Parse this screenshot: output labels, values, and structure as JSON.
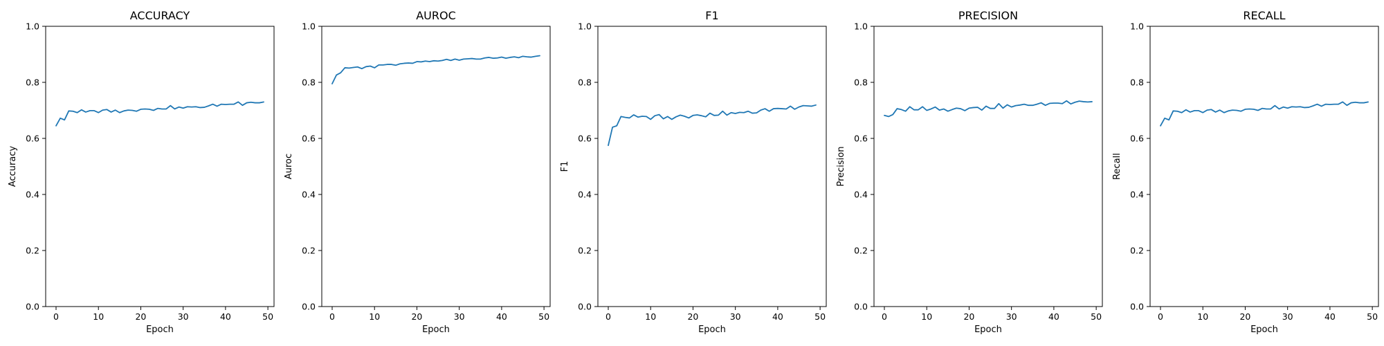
{
  "figure": {
    "background": "#ffffff"
  },
  "style": {
    "line_color": "#1f77b4",
    "axis_color": "#000000"
  },
  "chart_data": [
    {
      "type": "line",
      "title": "ACCURACY",
      "xlabel": "Epoch",
      "ylabel": "Accuracy",
      "xlim": [
        -2.45,
        51.45
      ],
      "ylim": [
        0,
        1
      ],
      "xticks": [
        0,
        10,
        20,
        30,
        40,
        50
      ],
      "yticks": [
        0.0,
        0.2,
        0.4,
        0.6,
        0.8,
        1.0
      ],
      "grid": false,
      "legend": "none",
      "x": [
        0,
        1,
        2,
        3,
        4,
        5,
        6,
        7,
        8,
        9,
        10,
        11,
        12,
        13,
        14,
        15,
        16,
        17,
        18,
        19,
        20,
        21,
        22,
        23,
        24,
        25,
        26,
        27,
        28,
        29,
        30,
        31,
        32,
        33,
        34,
        35,
        36,
        37,
        38,
        39,
        40,
        41,
        42,
        43,
        44,
        45,
        46,
        47,
        48,
        49
      ],
      "values": [
        0.645,
        0.672,
        0.666,
        0.698,
        0.697,
        0.692,
        0.702,
        0.694,
        0.699,
        0.699,
        0.692,
        0.701,
        0.703,
        0.694,
        0.701,
        0.692,
        0.698,
        0.701,
        0.7,
        0.697,
        0.704,
        0.705,
        0.704,
        0.7,
        0.707,
        0.705,
        0.705,
        0.717,
        0.705,
        0.712,
        0.708,
        0.713,
        0.712,
        0.713,
        0.71,
        0.711,
        0.716,
        0.722,
        0.715,
        0.722,
        0.721,
        0.722,
        0.722,
        0.73,
        0.718,
        0.727,
        0.729,
        0.727,
        0.727,
        0.73
      ]
    },
    {
      "type": "line",
      "title": "AUROC",
      "xlabel": "Epoch",
      "ylabel": "Auroc",
      "xlim": [
        -2.45,
        51.45
      ],
      "ylim": [
        0,
        1
      ],
      "xticks": [
        0,
        10,
        20,
        30,
        40,
        50
      ],
      "yticks": [
        0.0,
        0.2,
        0.4,
        0.6,
        0.8,
        1.0
      ],
      "grid": false,
      "legend": "none",
      "x": [
        0,
        1,
        2,
        3,
        4,
        5,
        6,
        7,
        8,
        9,
        10,
        11,
        12,
        13,
        14,
        15,
        16,
        17,
        18,
        19,
        20,
        21,
        22,
        23,
        24,
        25,
        26,
        27,
        28,
        29,
        30,
        31,
        32,
        33,
        34,
        35,
        36,
        37,
        38,
        39,
        40,
        41,
        42,
        43,
        44,
        45,
        46,
        47,
        48,
        49
      ],
      "values": [
        0.795,
        0.826,
        0.834,
        0.852,
        0.851,
        0.853,
        0.855,
        0.849,
        0.856,
        0.858,
        0.852,
        0.862,
        0.862,
        0.864,
        0.864,
        0.861,
        0.866,
        0.868,
        0.869,
        0.868,
        0.874,
        0.873,
        0.876,
        0.874,
        0.877,
        0.876,
        0.878,
        0.882,
        0.878,
        0.883,
        0.879,
        0.883,
        0.884,
        0.885,
        0.883,
        0.883,
        0.887,
        0.889,
        0.886,
        0.887,
        0.89,
        0.886,
        0.889,
        0.891,
        0.888,
        0.893,
        0.891,
        0.89,
        0.893,
        0.895
      ]
    },
    {
      "type": "line",
      "title": "F1",
      "xlabel": "Epoch",
      "ylabel": "F1",
      "xlim": [
        -2.45,
        51.45
      ],
      "ylim": [
        0,
        1
      ],
      "xticks": [
        0,
        10,
        20,
        30,
        40,
        50
      ],
      "yticks": [
        0.0,
        0.2,
        0.4,
        0.6,
        0.8,
        1.0
      ],
      "grid": false,
      "legend": "none",
      "x": [
        0,
        1,
        2,
        3,
        4,
        5,
        6,
        7,
        8,
        9,
        10,
        11,
        12,
        13,
        14,
        15,
        16,
        17,
        18,
        19,
        20,
        21,
        22,
        23,
        24,
        25,
        26,
        27,
        28,
        29,
        30,
        31,
        32,
        33,
        34,
        35,
        36,
        37,
        38,
        39,
        40,
        41,
        42,
        43,
        44,
        45,
        46,
        47,
        48,
        49
      ],
      "values": [
        0.575,
        0.64,
        0.645,
        0.678,
        0.675,
        0.673,
        0.684,
        0.676,
        0.679,
        0.678,
        0.668,
        0.681,
        0.685,
        0.67,
        0.678,
        0.668,
        0.677,
        0.683,
        0.679,
        0.673,
        0.682,
        0.684,
        0.681,
        0.677,
        0.69,
        0.682,
        0.683,
        0.697,
        0.683,
        0.692,
        0.689,
        0.693,
        0.692,
        0.697,
        0.69,
        0.691,
        0.701,
        0.706,
        0.697,
        0.706,
        0.707,
        0.706,
        0.705,
        0.715,
        0.704,
        0.712,
        0.717,
        0.716,
        0.715,
        0.719
      ]
    },
    {
      "type": "line",
      "title": "PRECISION",
      "xlabel": "Epoch",
      "ylabel": "Precision",
      "xlim": [
        -2.45,
        51.45
      ],
      "ylim": [
        0,
        1
      ],
      "xticks": [
        0,
        10,
        20,
        30,
        40,
        50
      ],
      "yticks": [
        0.0,
        0.2,
        0.4,
        0.6,
        0.8,
        1.0
      ],
      "grid": false,
      "legend": "none",
      "x": [
        0,
        1,
        2,
        3,
        4,
        5,
        6,
        7,
        8,
        9,
        10,
        11,
        12,
        13,
        14,
        15,
        16,
        17,
        18,
        19,
        20,
        21,
        22,
        23,
        24,
        25,
        26,
        27,
        28,
        29,
        30,
        31,
        32,
        33,
        34,
        35,
        36,
        37,
        38,
        39,
        40,
        41,
        42,
        43,
        44,
        45,
        46,
        47,
        48,
        49
      ],
      "values": [
        0.682,
        0.678,
        0.685,
        0.706,
        0.703,
        0.697,
        0.713,
        0.702,
        0.702,
        0.713,
        0.7,
        0.705,
        0.712,
        0.701,
        0.705,
        0.697,
        0.703,
        0.708,
        0.706,
        0.699,
        0.708,
        0.71,
        0.711,
        0.701,
        0.715,
        0.707,
        0.707,
        0.724,
        0.708,
        0.72,
        0.712,
        0.717,
        0.719,
        0.722,
        0.718,
        0.718,
        0.722,
        0.727,
        0.718,
        0.725,
        0.726,
        0.726,
        0.724,
        0.734,
        0.723,
        0.729,
        0.733,
        0.731,
        0.73,
        0.731
      ]
    },
    {
      "type": "line",
      "title": "RECALL",
      "xlabel": "Epoch",
      "ylabel": "Recall",
      "xlim": [
        -2.45,
        51.45
      ],
      "ylim": [
        0,
        1
      ],
      "xticks": [
        0,
        10,
        20,
        30,
        40,
        50
      ],
      "yticks": [
        0.0,
        0.2,
        0.4,
        0.6,
        0.8,
        1.0
      ],
      "grid": false,
      "legend": "none",
      "x": [
        0,
        1,
        2,
        3,
        4,
        5,
        6,
        7,
        8,
        9,
        10,
        11,
        12,
        13,
        14,
        15,
        16,
        17,
        18,
        19,
        20,
        21,
        22,
        23,
        24,
        25,
        26,
        27,
        28,
        29,
        30,
        31,
        32,
        33,
        34,
        35,
        36,
        37,
        38,
        39,
        40,
        41,
        42,
        43,
        44,
        45,
        46,
        47,
        48,
        49
      ],
      "values": [
        0.645,
        0.672,
        0.666,
        0.698,
        0.697,
        0.692,
        0.702,
        0.694,
        0.699,
        0.699,
        0.692,
        0.701,
        0.703,
        0.694,
        0.701,
        0.692,
        0.698,
        0.701,
        0.7,
        0.697,
        0.704,
        0.705,
        0.704,
        0.7,
        0.707,
        0.705,
        0.705,
        0.717,
        0.705,
        0.712,
        0.708,
        0.713,
        0.712,
        0.713,
        0.71,
        0.711,
        0.716,
        0.722,
        0.715,
        0.722,
        0.721,
        0.722,
        0.722,
        0.73,
        0.718,
        0.727,
        0.729,
        0.727,
        0.727,
        0.73
      ]
    }
  ]
}
